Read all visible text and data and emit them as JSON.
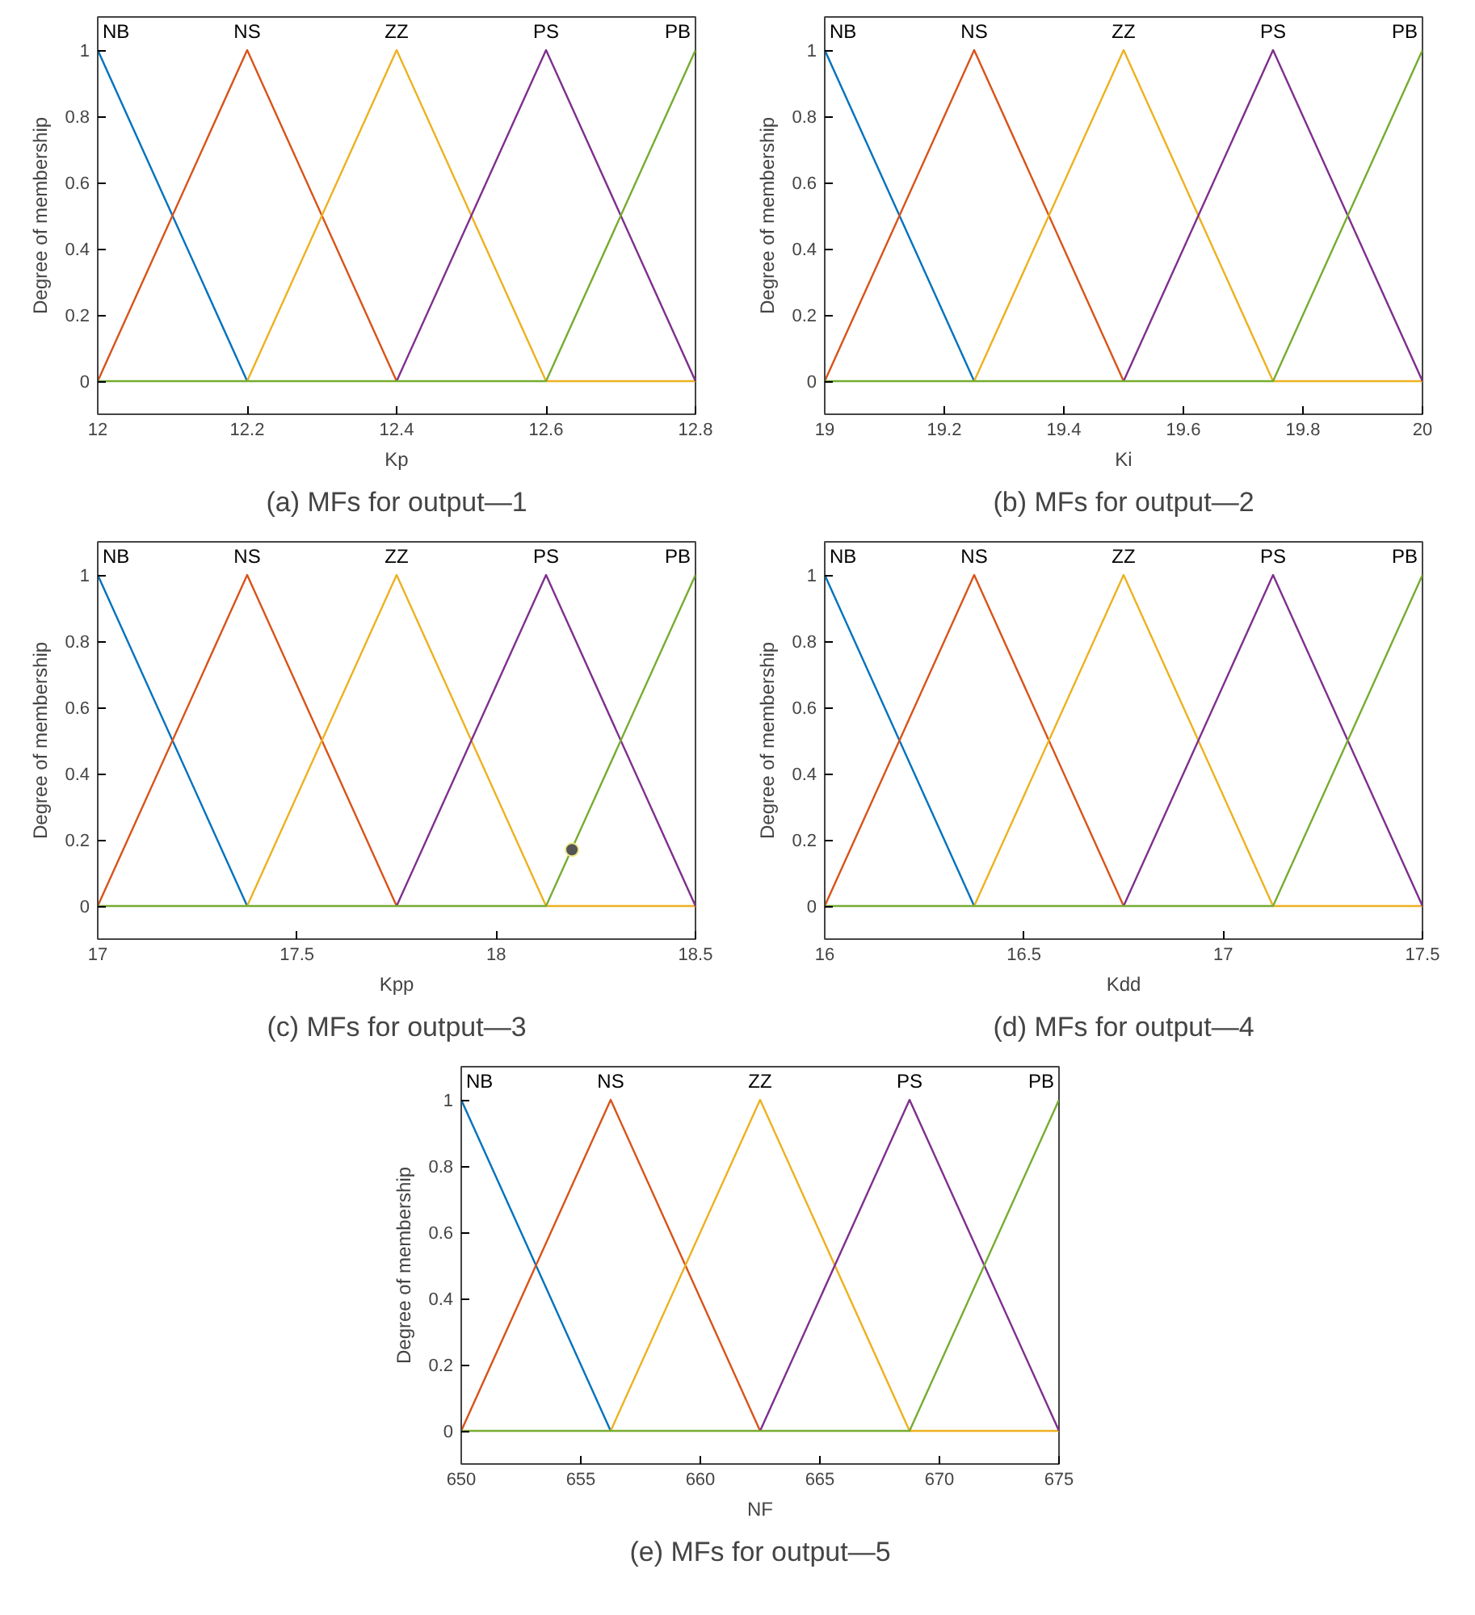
{
  "chart_data": [
    {
      "type": "line",
      "title": "(a) MFs for output—1",
      "xlabel": "Kp",
      "ylabel": "Degree of membership",
      "x": [
        12,
        12.2,
        12.4,
        12.6,
        12.8
      ],
      "xlim": [
        12,
        12.8
      ],
      "xticks": [
        12,
        12.2,
        12.4,
        12.6,
        12.8
      ],
      "ylim": [
        -0.1,
        1.1
      ],
      "yticks": [
        0,
        0.2,
        0.4,
        0.6,
        0.8,
        1
      ],
      "grid": false,
      "series": [
        {
          "name": "NB",
          "color": "#0072bd",
          "values": [
            1,
            0,
            null,
            null,
            null
          ]
        },
        {
          "name": "NS",
          "color": "#d95319",
          "values": [
            0,
            1,
            0,
            null,
            null
          ]
        },
        {
          "name": "ZZ",
          "color": "#edb120",
          "values": [
            null,
            0,
            1,
            0,
            0
          ]
        },
        {
          "name": "PS",
          "color": "#7e2f8e",
          "values": [
            null,
            null,
            0,
            1,
            0
          ]
        },
        {
          "name": "PB",
          "color": "#77ac30",
          "values": [
            0,
            0,
            0,
            0,
            1
          ]
        }
      ]
    },
    {
      "type": "line",
      "title": "(b) MFs for output—2",
      "xlabel": "Ki",
      "ylabel": "Degree of membership",
      "x": [
        19,
        19.25,
        19.5,
        19.75,
        20
      ],
      "xlim": [
        19,
        20
      ],
      "xticks": [
        19,
        19.2,
        19.4,
        19.6,
        19.8,
        20
      ],
      "ylim": [
        -0.1,
        1.1
      ],
      "yticks": [
        0,
        0.2,
        0.4,
        0.6,
        0.8,
        1
      ],
      "grid": false,
      "series": [
        {
          "name": "NB",
          "color": "#0072bd",
          "values": [
            1,
            0,
            null,
            null,
            null
          ]
        },
        {
          "name": "NS",
          "color": "#d95319",
          "values": [
            0,
            1,
            0,
            null,
            null
          ]
        },
        {
          "name": "ZZ",
          "color": "#edb120",
          "values": [
            null,
            0,
            1,
            0,
            0
          ]
        },
        {
          "name": "PS",
          "color": "#7e2f8e",
          "values": [
            null,
            null,
            0,
            1,
            0
          ]
        },
        {
          "name": "PB",
          "color": "#77ac30",
          "values": [
            0,
            0,
            0,
            0,
            1
          ]
        }
      ]
    },
    {
      "type": "line",
      "title": "(c) MFs for output—3",
      "xlabel": "Kpp",
      "ylabel": "Degree of membership",
      "x": [
        17,
        17.375,
        17.75,
        18.125,
        18.5
      ],
      "xlim": [
        17,
        18.5
      ],
      "xticks": [
        17,
        17.5,
        18,
        18.5
      ],
      "ylim": [
        -0.1,
        1.1
      ],
      "yticks": [
        0,
        0.2,
        0.4,
        0.6,
        0.8,
        1
      ],
      "grid": false,
      "series": [
        {
          "name": "NB",
          "color": "#0072bd",
          "values": [
            1,
            0,
            null,
            null,
            null
          ]
        },
        {
          "name": "NS",
          "color": "#d95319",
          "values": [
            0,
            1,
            0,
            null,
            null
          ]
        },
        {
          "name": "ZZ",
          "color": "#edb120",
          "values": [
            null,
            0,
            1,
            0,
            0
          ]
        },
        {
          "name": "PS",
          "color": "#7e2f8e",
          "values": [
            null,
            null,
            0,
            1,
            0
          ]
        },
        {
          "name": "PB",
          "color": "#77ac30",
          "values": [
            0,
            0,
            0,
            0,
            1
          ]
        },
        {
          "type": "scatter",
          "marker": "circle",
          "color": "#555555",
          "x": [
            18.19
          ],
          "values": [
            0.17
          ]
        }
      ]
    },
    {
      "type": "line",
      "title": "(d) MFs for output—4",
      "xlabel": "Kdd",
      "ylabel": "Degree of membership",
      "x": [
        16,
        16.375,
        16.75,
        17.125,
        17.5
      ],
      "xlim": [
        16,
        17.5
      ],
      "xticks": [
        16,
        16.5,
        17,
        17.5
      ],
      "ylim": [
        -0.1,
        1.1
      ],
      "yticks": [
        0,
        0.2,
        0.4,
        0.6,
        0.8,
        1
      ],
      "grid": false,
      "series": [
        {
          "name": "NB",
          "color": "#0072bd",
          "values": [
            1,
            0,
            null,
            null,
            null
          ]
        },
        {
          "name": "NS",
          "color": "#d95319",
          "values": [
            0,
            1,
            0,
            null,
            null
          ]
        },
        {
          "name": "ZZ",
          "color": "#edb120",
          "values": [
            null,
            0,
            1,
            0,
            0
          ]
        },
        {
          "name": "PS",
          "color": "#7e2f8e",
          "values": [
            null,
            null,
            0,
            1,
            0
          ]
        },
        {
          "name": "PB",
          "color": "#77ac30",
          "values": [
            0,
            0,
            0,
            0,
            1
          ]
        }
      ]
    },
    {
      "type": "line",
      "title": "(e) MFs for output—5",
      "xlabel": "NF",
      "ylabel": "Degree of membership",
      "x": [
        650,
        656.25,
        662.5,
        668.75,
        675
      ],
      "xlim": [
        650,
        675
      ],
      "xticks": [
        650,
        655,
        660,
        665,
        670,
        675
      ],
      "ylim": [
        -0.1,
        1.1
      ],
      "yticks": [
        0,
        0.2,
        0.4,
        0.6,
        0.8,
        1
      ],
      "grid": false,
      "series": [
        {
          "name": "NB",
          "color": "#0072bd",
          "values": [
            1,
            0,
            null,
            null,
            null
          ]
        },
        {
          "name": "NS",
          "color": "#d95319",
          "values": [
            0,
            1,
            0,
            null,
            null
          ]
        },
        {
          "name": "ZZ",
          "color": "#edb120",
          "values": [
            null,
            0,
            1,
            0,
            0
          ]
        },
        {
          "name": "PS",
          "color": "#7e2f8e",
          "values": [
            null,
            null,
            0,
            1,
            0
          ]
        },
        {
          "name": "PB",
          "color": "#77ac30",
          "values": [
            0,
            0,
            0,
            0,
            1
          ]
        }
      ]
    }
  ]
}
